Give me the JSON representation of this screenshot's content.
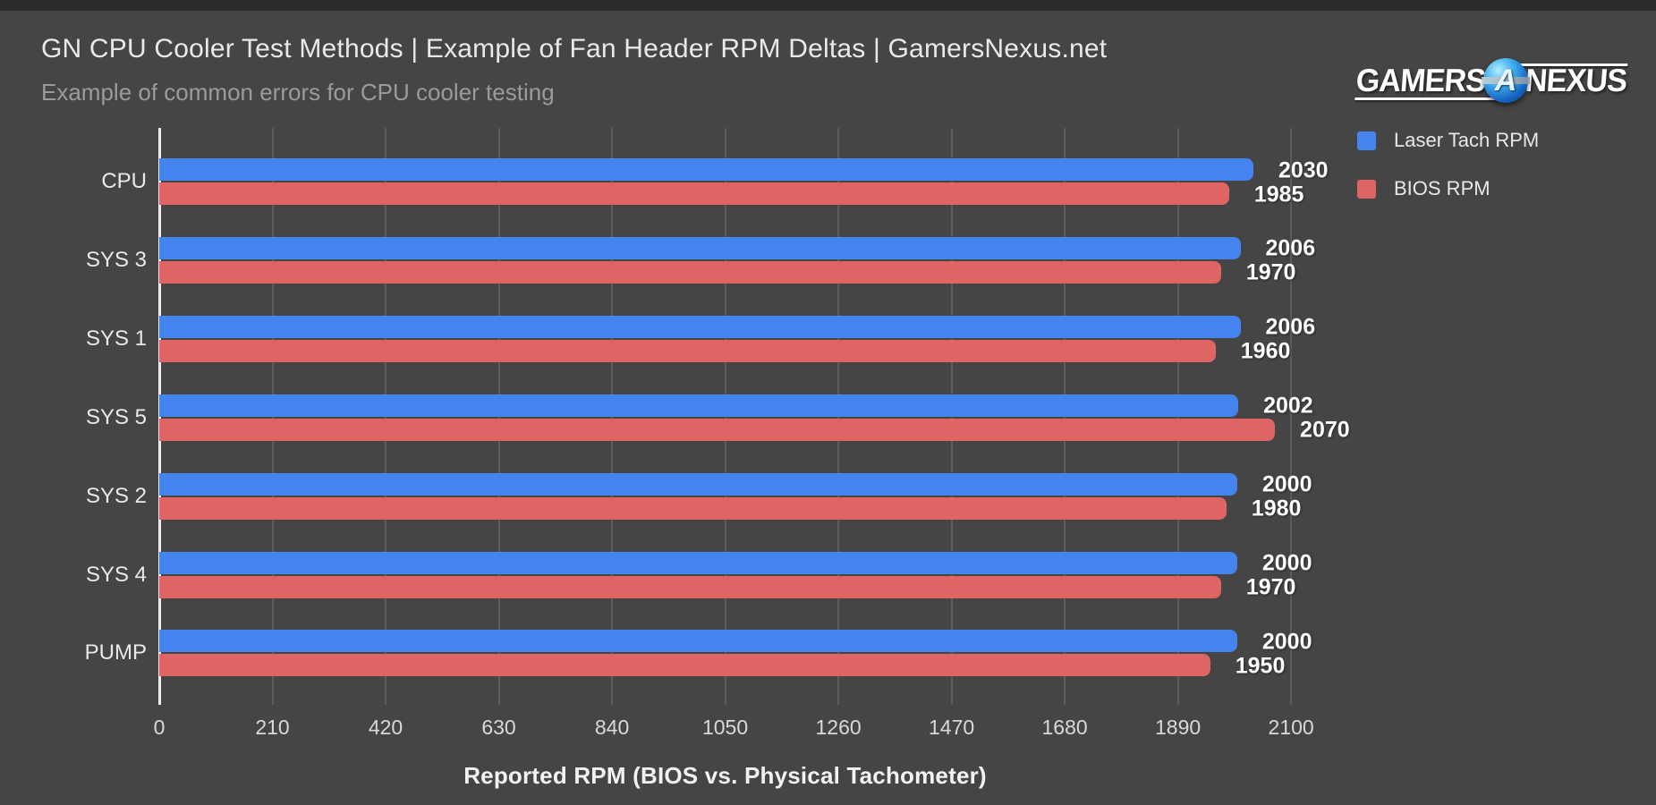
{
  "page": {
    "background": "#454545"
  },
  "header": {
    "title": "GN CPU Cooler Test Methods | Example of Fan Header RPM Deltas | GamersNexus.net",
    "subtitle": "Example of common errors for CPU cooler testing"
  },
  "logo": {
    "part1": "GAMERS",
    "part2": "NEXUS",
    "emblem": "blue-globe-icon"
  },
  "legend": [
    {
      "label": "Laser Tach RPM"
    },
    {
      "label": "BIOS RPM"
    }
  ],
  "chart_data": {
    "type": "bar",
    "orientation": "horizontal",
    "title": "GN CPU Cooler Test Methods | Example of Fan Header RPM Deltas | GamersNexus.net",
    "subtitle": "Example of common errors for CPU cooler testing",
    "categories": [
      "CPU",
      "SYS 3",
      "SYS 1",
      "SYS 5",
      "SYS 2",
      "SYS 4",
      "PUMP"
    ],
    "series": [
      {
        "name": "Laser Tach RPM",
        "color": "#4583ee",
        "values": [
          2030,
          2006,
          2006,
          2002,
          2000,
          2000,
          2000
        ]
      },
      {
        "name": "BIOS RPM",
        "color": "#df6464",
        "values": [
          1985,
          1970,
          1960,
          2070,
          1980,
          1970,
          1950
        ]
      }
    ],
    "xlabel": "Reported RPM (BIOS vs. Physical Tachometer)",
    "ylabel": "",
    "x_ticks": [
      0,
      210,
      420,
      630,
      840,
      1050,
      1260,
      1470,
      1680,
      1890,
      2100
    ],
    "xlim": [
      0,
      2128
    ],
    "grid": true,
    "gridline_color": "#5b5b5b",
    "axis_line_color": "#ededed",
    "value_labels": true,
    "legend_position": "top-right"
  }
}
